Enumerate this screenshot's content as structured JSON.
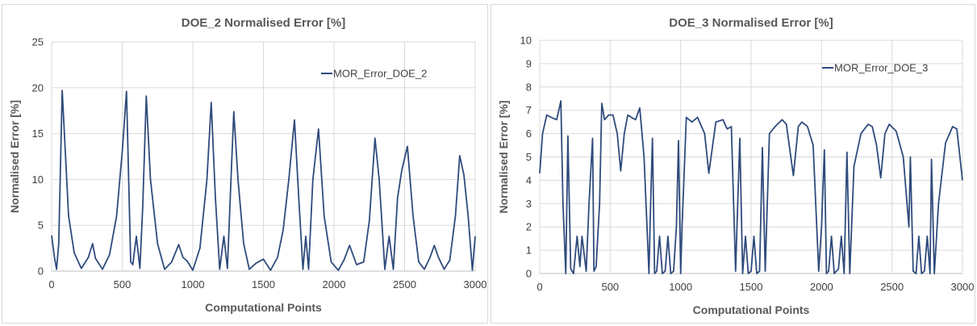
{
  "colors": {
    "series": "#2f4b7c",
    "grid": "#d9d9d9",
    "text": "#595959"
  },
  "chart_data": [
    {
      "type": "line",
      "title": "DOE_2 Normalised Error [%]",
      "xlabel": "Computational Points",
      "ylabel": "Normalised Error [%]",
      "xlim": [
        0,
        3000
      ],
      "ylim": [
        0,
        25
      ],
      "xticks": [
        0,
        500,
        1000,
        1500,
        2000,
        2500,
        3000
      ],
      "yticks": [
        0,
        5,
        10,
        15,
        20,
        25
      ],
      "grid": true,
      "legend_position": "top-right",
      "series": [
        {
          "name": "MOR_Error_DOE_2",
          "x": [
            0,
            20,
            35,
            50,
            75,
            120,
            160,
            210,
            260,
            290,
            310,
            360,
            410,
            460,
            500,
            530,
            560,
            575,
            600,
            625,
            645,
            670,
            700,
            750,
            800,
            850,
            900,
            930,
            960,
            1000,
            1050,
            1100,
            1130,
            1160,
            1190,
            1220,
            1245,
            1270,
            1290,
            1320,
            1360,
            1400,
            1450,
            1500,
            1550,
            1600,
            1640,
            1680,
            1720,
            1750,
            1780,
            1800,
            1820,
            1850,
            1890,
            1930,
            1980,
            2030,
            2070,
            2110,
            2160,
            2210,
            2250,
            2290,
            2320,
            2360,
            2390,
            2420,
            2450,
            2480,
            2520,
            2560,
            2600,
            2640,
            2680,
            2710,
            2740,
            2780,
            2820,
            2860,
            2890,
            2920,
            2950,
            2980,
            3000
          ],
          "values": [
            3.9,
            1.5,
            0.2,
            3.0,
            19.7,
            6.0,
            2.0,
            0.3,
            1.5,
            3.0,
            1.4,
            0.2,
            1.8,
            6.0,
            13.0,
            19.6,
            1.0,
            0.7,
            3.8,
            0.3,
            7.0,
            19.1,
            10.0,
            3.0,
            0.2,
            1.0,
            2.9,
            1.5,
            1.1,
            0.1,
            2.5,
            10.0,
            18.4,
            8.0,
            0.2,
            3.8,
            0.3,
            10.0,
            17.4,
            10.0,
            3.0,
            0.2,
            0.9,
            1.3,
            0.1,
            1.5,
            4.5,
            10.0,
            16.5,
            8.0,
            0.2,
            3.8,
            0.2,
            10.0,
            15.5,
            6.0,
            1.0,
            0.1,
            1.2,
            2.8,
            0.7,
            1.0,
            5.5,
            14.5,
            10.0,
            0.2,
            3.8,
            0.2,
            8.0,
            11.0,
            13.6,
            6.0,
            1.0,
            0.2,
            1.5,
            2.8,
            1.5,
            0.2,
            1.2,
            6.0,
            12.6,
            10.5,
            6.0,
            0.1,
            3.8
          ]
        }
      ]
    },
    {
      "type": "line",
      "title": "DOE_3 Normalised Error [%]",
      "xlabel": "Computational Points",
      "ylabel": "Normalised Error [%]",
      "xlim": [
        0,
        3000
      ],
      "ylim": [
        0,
        10
      ],
      "xticks": [
        0,
        500,
        1000,
        1500,
        2000,
        2500,
        3000
      ],
      "yticks": [
        0,
        1,
        2,
        3,
        4,
        5,
        6,
        7,
        8,
        9,
        10
      ],
      "grid": true,
      "legend_position": "top-right",
      "series": [
        {
          "name": "MOR_Error_DOE_3",
          "x": [
            0,
            20,
            50,
            80,
            120,
            150,
            165,
            185,
            200,
            220,
            240,
            265,
            285,
            300,
            330,
            350,
            375,
            385,
            400,
            425,
            440,
            460,
            490,
            520,
            550,
            575,
            600,
            625,
            650,
            680,
            710,
            740,
            775,
            785,
            800,
            815,
            830,
            850,
            870,
            890,
            910,
            930,
            950,
            970,
            985,
            1000,
            1010,
            1040,
            1080,
            1120,
            1170,
            1200,
            1250,
            1300,
            1330,
            1360,
            1390,
            1400,
            1420,
            1440,
            1460,
            1480,
            1500,
            1520,
            1540,
            1560,
            1580,
            1600,
            1630,
            1670,
            1720,
            1750,
            1800,
            1835,
            1860,
            1900,
            1940,
            1980,
            2000,
            2020,
            2035,
            2050,
            2070,
            2090,
            2120,
            2140,
            2160,
            2180,
            2200,
            2230,
            2280,
            2330,
            2360,
            2390,
            2420,
            2450,
            2480,
            2530,
            2580,
            2620,
            2630,
            2650,
            2670,
            2690,
            2710,
            2730,
            2750,
            2770,
            2780,
            2800,
            2830,
            2880,
            2930,
            2960,
            3000
          ],
          "values": [
            4.3,
            6.0,
            6.8,
            6.7,
            6.6,
            7.4,
            3.0,
            0.0,
            5.9,
            0.2,
            0.0,
            1.6,
            0.3,
            1.6,
            0.1,
            3.0,
            5.8,
            0.1,
            0.3,
            3.0,
            7.3,
            6.6,
            6.8,
            6.8,
            6.0,
            4.4,
            6.0,
            6.8,
            6.7,
            6.6,
            7.1,
            5.0,
            0.0,
            2.5,
            5.8,
            0.0,
            0.1,
            1.6,
            0.0,
            0.1,
            1.6,
            0.0,
            0.1,
            2.0,
            5.7,
            0.0,
            2.0,
            6.7,
            6.5,
            6.7,
            6.0,
            4.3,
            6.5,
            6.6,
            6.2,
            6.3,
            0.1,
            2.0,
            5.8,
            0.0,
            1.6,
            0.0,
            0.1,
            1.6,
            0.0,
            0.1,
            5.4,
            0.1,
            6.0,
            6.3,
            6.6,
            6.4,
            4.2,
            6.3,
            6.5,
            6.3,
            5.5,
            0.1,
            2.0,
            5.3,
            0.0,
            0.1,
            1.6,
            0.0,
            0.2,
            1.6,
            0.0,
            5.2,
            0.0,
            4.6,
            6.0,
            6.4,
            6.3,
            5.5,
            4.1,
            6.0,
            6.4,
            6.1,
            5.0,
            2.0,
            5.0,
            0.1,
            0.0,
            1.6,
            0.0,
            0.1,
            1.6,
            0.0,
            4.9,
            0.0,
            3.0,
            5.6,
            6.3,
            6.2,
            4.0
          ]
        }
      ]
    }
  ]
}
